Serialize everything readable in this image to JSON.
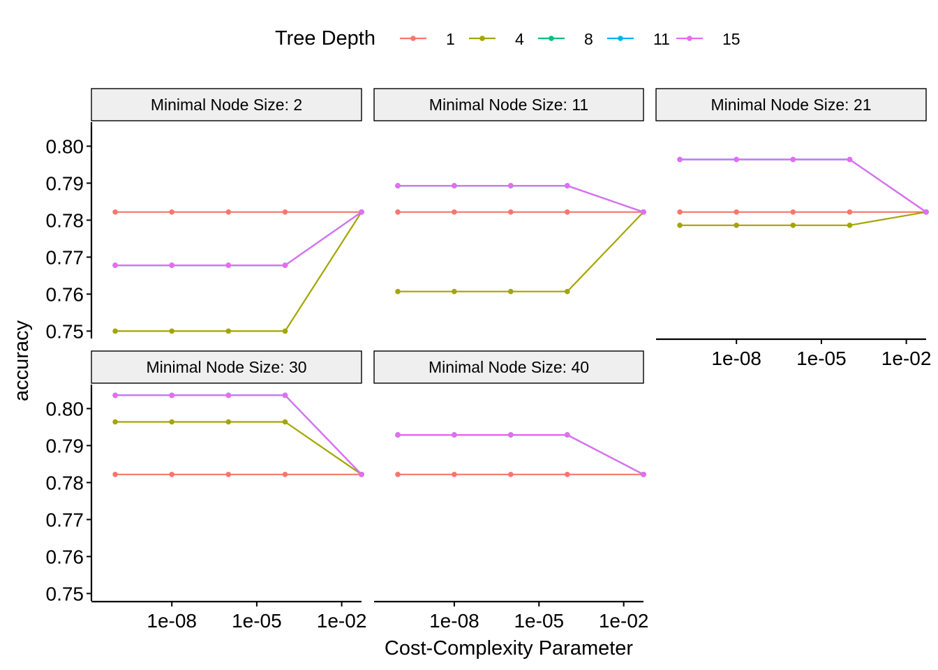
{
  "chart_data": {
    "type": "line",
    "xlabel": "Cost-Complexity Parameter",
    "ylabel": "accuracy",
    "x_scale": "log10",
    "x": [
      1e-10,
      1e-08,
      1e-06,
      0.0001,
      0.05
    ],
    "xticks": [
      {
        "value": 1e-08,
        "label": "1e-08"
      },
      {
        "value": 1e-05,
        "label": "1e-05"
      },
      {
        "value": 0.01,
        "label": "1e-02"
      }
    ],
    "ylim": [
      0.748,
      0.8065
    ],
    "yticks": [
      {
        "value": 0.75,
        "label": "0.75"
      },
      {
        "value": 0.76,
        "label": "0.76"
      },
      {
        "value": 0.77,
        "label": "0.77"
      },
      {
        "value": 0.78,
        "label": "0.78"
      },
      {
        "value": 0.79,
        "label": "0.79"
      },
      {
        "value": 0.8,
        "label": "0.80"
      }
    ],
    "legend": {
      "title": "Tree Depth",
      "position": "top",
      "entries": [
        {
          "name": "1",
          "color": "#F8766D"
        },
        {
          "name": "4",
          "color": "#A3A500"
        },
        {
          "name": "8",
          "color": "#00BF7D"
        },
        {
          "name": "11",
          "color": "#00B0F6"
        },
        {
          "name": "15",
          "color": "#E76BF3"
        }
      ]
    },
    "facets": [
      {
        "label": "Minimal Node Size: 2",
        "series": [
          {
            "name": "1",
            "values": [
              0.7822,
              0.7822,
              0.7822,
              0.7822,
              0.7822
            ]
          },
          {
            "name": "4",
            "values": [
              0.75,
              0.75,
              0.75,
              0.75,
              0.7822
            ]
          },
          {
            "name": "8",
            "values": [
              0.7678,
              0.7678,
              0.7678,
              0.7678,
              0.7822
            ]
          },
          {
            "name": "11",
            "values": [
              0.7678,
              0.7678,
              0.7678,
              0.7678,
              0.7822
            ]
          },
          {
            "name": "15",
            "values": [
              0.7678,
              0.7678,
              0.7678,
              0.7678,
              0.7822
            ]
          }
        ]
      },
      {
        "label": "Minimal Node Size: 11",
        "series": [
          {
            "name": "1",
            "values": [
              0.7822,
              0.7822,
              0.7822,
              0.7822,
              0.7822
            ]
          },
          {
            "name": "4",
            "values": [
              0.7607,
              0.7607,
              0.7607,
              0.7607,
              0.7822
            ]
          },
          {
            "name": "8",
            "values": [
              0.7893,
              0.7893,
              0.7893,
              0.7893,
              0.7822
            ]
          },
          {
            "name": "11",
            "values": [
              0.7893,
              0.7893,
              0.7893,
              0.7893,
              0.7822
            ]
          },
          {
            "name": "15",
            "values": [
              0.7893,
              0.7893,
              0.7893,
              0.7893,
              0.7822
            ]
          }
        ]
      },
      {
        "label": "Minimal Node Size: 21",
        "series": [
          {
            "name": "1",
            "values": [
              0.7822,
              0.7822,
              0.7822,
              0.7822,
              0.7822
            ]
          },
          {
            "name": "4",
            "values": [
              0.7786,
              0.7786,
              0.7786,
              0.7786,
              0.7822
            ]
          },
          {
            "name": "8",
            "values": [
              0.7964,
              0.7964,
              0.7964,
              0.7964,
              0.7822
            ]
          },
          {
            "name": "11",
            "values": [
              0.7964,
              0.7964,
              0.7964,
              0.7964,
              0.7822
            ]
          },
          {
            "name": "15",
            "values": [
              0.7964,
              0.7964,
              0.7964,
              0.7964,
              0.7822
            ]
          }
        ]
      },
      {
        "label": "Minimal Node Size: 30",
        "series": [
          {
            "name": "1",
            "values": [
              0.7822,
              0.7822,
              0.7822,
              0.7822,
              0.7822
            ]
          },
          {
            "name": "4",
            "values": [
              0.7964,
              0.7964,
              0.7964,
              0.7964,
              0.7822
            ]
          },
          {
            "name": "8",
            "values": [
              0.8036,
              0.8036,
              0.8036,
              0.8036,
              0.7822
            ]
          },
          {
            "name": "11",
            "values": [
              0.8036,
              0.8036,
              0.8036,
              0.8036,
              0.7822
            ]
          },
          {
            "name": "15",
            "values": [
              0.8036,
              0.8036,
              0.8036,
              0.8036,
              0.7822
            ]
          }
        ]
      },
      {
        "label": "Minimal Node Size: 40",
        "series": [
          {
            "name": "1",
            "values": [
              0.7822,
              0.7822,
              0.7822,
              0.7822,
              0.7822
            ]
          },
          {
            "name": "4",
            "values": [
              0.7929,
              0.7929,
              0.7929,
              0.7929,
              0.7822
            ]
          },
          {
            "name": "8",
            "values": [
              0.7929,
              0.7929,
              0.7929,
              0.7929,
              0.7822
            ]
          },
          {
            "name": "11",
            "values": [
              0.7929,
              0.7929,
              0.7929,
              0.7929,
              0.7822
            ]
          },
          {
            "name": "15",
            "values": [
              0.7929,
              0.7929,
              0.7929,
              0.7929,
              0.7822
            ]
          }
        ]
      }
    ]
  }
}
